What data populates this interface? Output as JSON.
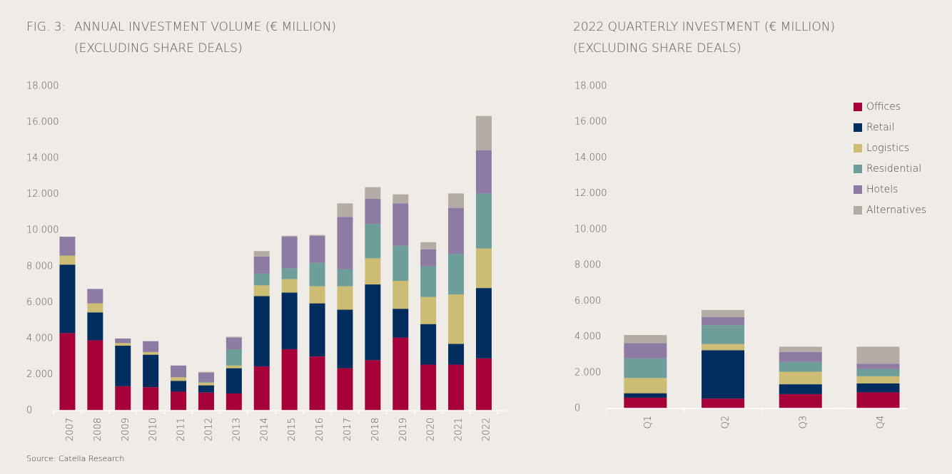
{
  "figure_label": "FIG. 3:",
  "source": "Source: Catella Research",
  "chart_data": [
    {
      "type": "stacked_bar",
      "title": "ANNUAL INVESTMENT VOLUME (€ MILLION)",
      "subtitle": "(EXCLUDING SHARE DEALS)",
      "categories": [
        "2007",
        "2008",
        "2009",
        "2010",
        "2011",
        "2012",
        "2013",
        "2014",
        "2015",
        "2016",
        "2017",
        "2018",
        "2019",
        "2020",
        "2021",
        "2022"
      ],
      "ylim": [
        0,
        18000
      ],
      "yticks": [
        {
          "value": 0,
          "label": "0"
        },
        {
          "value": 2000,
          "label": "2.000"
        },
        {
          "value": 4000,
          "label": "4.000"
        },
        {
          "value": 6000,
          "label": "6.000"
        },
        {
          "value": 8000,
          "label": "8.000"
        },
        {
          "value": 10000,
          "label": "10.000"
        },
        {
          "value": 12000,
          "label": "12.000"
        },
        {
          "value": 14000,
          "label": "14.000"
        },
        {
          "value": 16000,
          "label": "16.000"
        },
        {
          "value": 18000,
          "label": "18.000"
        }
      ],
      "grid": false,
      "series": [
        {
          "color": "#a5003a",
          "values": [
            4300,
            3900,
            1350,
            1300,
            1050,
            1000,
            950,
            2450,
            3400,
            3000,
            2350,
            2800,
            4050,
            2550,
            2550,
            2900
          ]
        },
        {
          "color": "#002d5e",
          "values": [
            3800,
            1550,
            2250,
            1800,
            600,
            400,
            1400,
            3900,
            3150,
            2950,
            3250,
            4200,
            1600,
            2250,
            1150,
            3900
          ]
        },
        {
          "color": "#cdbc74",
          "values": [
            500,
            500,
            150,
            150,
            200,
            150,
            150,
            600,
            750,
            950,
            1300,
            1450,
            1550,
            1500,
            2750,
            2200
          ]
        },
        {
          "color": "#6e9e9a",
          "values": [
            0,
            0,
            0,
            0,
            0,
            50,
            900,
            650,
            600,
            1300,
            950,
            1900,
            1950,
            1700,
            2250,
            3050
          ]
        },
        {
          "color": "#8e7ba3",
          "values": [
            1050,
            800,
            250,
            600,
            650,
            500,
            650,
            950,
            1750,
            1500,
            2900,
            1400,
            2350,
            950,
            2550,
            2400
          ]
        },
        {
          "color": "#b3aca6",
          "values": [
            0,
            0,
            0,
            0,
            0,
            50,
            50,
            300,
            50,
            50,
            750,
            650,
            500,
            400,
            800,
            1900
          ]
        }
      ]
    },
    {
      "type": "stacked_bar",
      "title": "2022 QUARTERLY INVESTMENT (€ MILLION)",
      "subtitle": "(EXCLUDING SHARE DEALS)",
      "categories": [
        "Q1",
        "Q2",
        "Q3",
        "Q4"
      ],
      "ylim": [
        0,
        18000
      ],
      "yticks": [
        {
          "value": 0,
          "label": "0"
        },
        {
          "value": 2000,
          "label": "2.000"
        },
        {
          "value": 4000,
          "label": "4.000"
        },
        {
          "value": 6000,
          "label": "6.000"
        },
        {
          "value": 8000,
          "label": "8.000"
        },
        {
          "value": 10000,
          "label": "10.000"
        },
        {
          "value": 12000,
          "label": "12.000"
        },
        {
          "value": 14000,
          "label": "14.000"
        },
        {
          "value": 16000,
          "label": "16.000"
        },
        {
          "value": 18000,
          "label": "18.000"
        }
      ],
      "grid": false,
      "legend": "upper right",
      "series": [
        {
          "name": "Offices",
          "color": "#a5003a",
          "values": [
            600,
            550,
            800,
            900
          ]
        },
        {
          "name": "Retail",
          "color": "#002d5e",
          "values": [
            250,
            2700,
            550,
            500
          ]
        },
        {
          "name": "Logistics",
          "color": "#cdbc74",
          "values": [
            850,
            350,
            700,
            400
          ]
        },
        {
          "name": "Residential",
          "color": "#6e9e9a",
          "values": [
            1100,
            1050,
            550,
            400
          ]
        },
        {
          "name": "Hotels",
          "color": "#8e7ba3",
          "values": [
            850,
            450,
            550,
            300
          ]
        },
        {
          "name": "Alternatives",
          "color": "#b3aca6",
          "values": [
            450,
            400,
            300,
            950
          ]
        }
      ]
    }
  ]
}
